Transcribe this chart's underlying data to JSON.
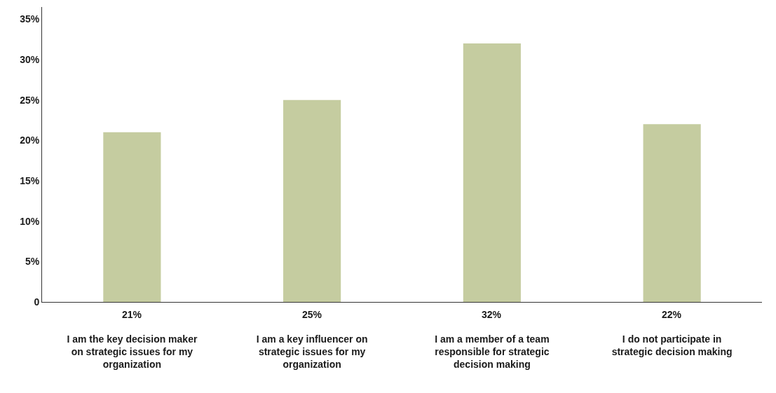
{
  "chart_data": {
    "type": "bar",
    "categories": [
      "I am the key decision maker on strategic issues for my organization",
      "I am a key influencer on strategic issues for my organization",
      "I am a member of a team responsible for strategic decision making",
      "I do not participate in strategic decision making"
    ],
    "values": [
      21,
      25,
      32,
      22
    ],
    "value_labels": [
      "21%",
      "25%",
      "32%",
      "22%"
    ],
    "color": "#c5cca0",
    "ylim": [
      0,
      36.5
    ],
    "yticks": [
      0,
      {
        "value": 5,
        "label": "5%"
      },
      {
        "value": 10,
        "label": "10%"
      },
      {
        "value": 15,
        "label": "15%"
      },
      {
        "value": 20,
        "label": "20%"
      },
      {
        "value": 25,
        "label": "25%"
      },
      {
        "value": 30,
        "label": "30%"
      },
      {
        "value": 35,
        "label": "35%"
      }
    ],
    "grid": false
  }
}
